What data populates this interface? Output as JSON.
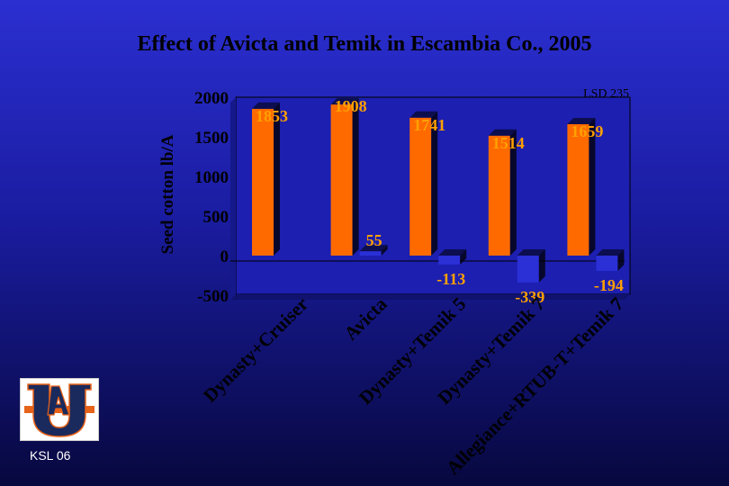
{
  "slide": {
    "title": "Effect of Avicta and Temik in Escambia Co., 2005",
    "footer": "KSL 06"
  },
  "colors": {
    "bar_primary": "#ff6a00",
    "bar_secondary": "#2a2fd6",
    "plot_bg": "#1c1fb0",
    "axis_text": "#000000",
    "value_label": "#ffa000"
  },
  "chart_data": {
    "type": "bar",
    "title": "Effect of Avicta and Temik in Escambia Co., 2005",
    "ylabel": "Seed cotton lb/A",
    "xlabel": "",
    "ylim": [
      -500,
      2000
    ],
    "yticks": [
      2000,
      1500,
      1000,
      500,
      0,
      -500
    ],
    "grid": false,
    "annotation": "LSD 235",
    "categories": [
      "Dynasty+Cruiser",
      "Avicta",
      "Dynasty+Temik 5",
      "Dynasty+Temik 7",
      "Allegiance+RTUB-T+Temik 7"
    ],
    "series": [
      {
        "values": [
          1853,
          1908,
          1741,
          1514,
          1659
        ],
        "labels": [
          "1853",
          "1908",
          "1741",
          "1514",
          "1659"
        ]
      },
      {
        "values": [
          null,
          55,
          -113,
          -339,
          -194
        ],
        "labels": [
          "",
          "55",
          "-113",
          "-339",
          "-194"
        ]
      }
    ]
  }
}
